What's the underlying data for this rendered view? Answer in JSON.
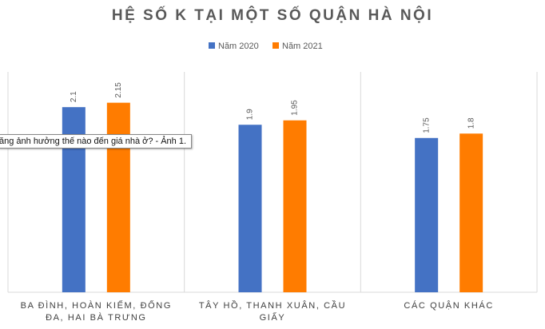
{
  "chart_data": {
    "type": "bar",
    "title": "HỆ SỐ K TẠI MỘT SỐ QUẬN HÀ NỘI",
    "categories": [
      "BA ĐÌNH, HOÀN KIẾM, ĐỐNG ĐA, HAI BÀ TRƯNG",
      "TÂY HỒ, THANH XUÂN, CẦU GIẤY",
      "CÁC QUẬN KHÁC"
    ],
    "series": [
      {
        "name": "Năm 2020",
        "color": "#4472c4",
        "values": [
          2.1,
          1.9,
          1.75
        ]
      },
      {
        "name": "Năm 2021",
        "color": "#ff7c00",
        "values": [
          2.15,
          1.95,
          1.8
        ]
      }
    ],
    "ylim": [
      0,
      2.5
    ],
    "legend": "top"
  },
  "tooltip": "ăng ảnh hưởng thế nào đến giá nhà ở? - Ảnh 1."
}
